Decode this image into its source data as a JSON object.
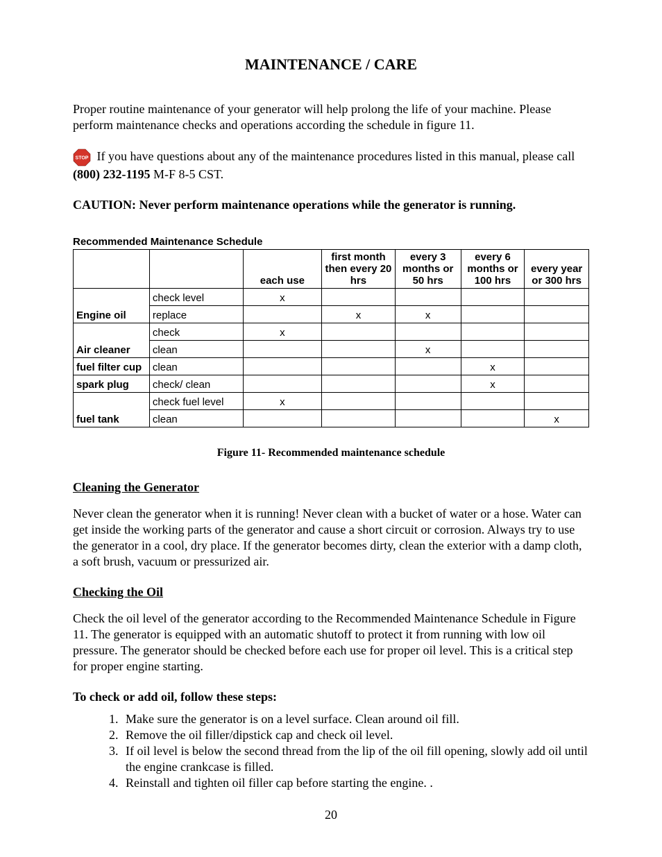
{
  "title": "MAINTENANCE / CARE",
  "intro": "Proper routine maintenance of your generator will help prolong the life of your machine.  Please perform maintenance checks and operations according the schedule in figure 11.",
  "stop_icon": {
    "label": "STOP",
    "fill": "#d4342a",
    "text_color": "#ffffff"
  },
  "stop_para_1": " If you have questions about any of the maintenance procedures listed in this manual, please call ",
  "stop_phone": "(800) 232-1195",
  "stop_para_2": " M-F 8-5 CST.",
  "caution": "CAUTION: Never perform maintenance operations while the generator is running.",
  "table_title": "Recommended Maintenance Schedule",
  "table": {
    "columns": [
      "",
      "",
      "each use",
      "first month then every 20 hrs",
      "every 3 months or 50 hrs",
      "every 6 months or 100 hrs",
      "every year or 300 hrs"
    ],
    "col_widths": [
      "110px",
      "140px",
      "118px",
      "106px",
      "92px",
      "88px",
      "92px"
    ],
    "header_bg": "#ffffff",
    "border_color": "#000000",
    "font_family": "Arial",
    "font_size": 15,
    "rows": [
      {
        "item": "Engine oil",
        "rowspan": 2,
        "action": "check level",
        "marks": [
          "x",
          "",
          "",
          "",
          ""
        ]
      },
      {
        "item": "",
        "action": "replace",
        "marks": [
          "",
          "x",
          "x",
          "",
          ""
        ]
      },
      {
        "item": "Air cleaner",
        "rowspan": 2,
        "action": "check",
        "marks": [
          "x",
          "",
          "",
          "",
          ""
        ]
      },
      {
        "item": "",
        "action": "clean",
        "marks": [
          "",
          "",
          "x",
          "",
          ""
        ]
      },
      {
        "item": "fuel filter cup",
        "rowspan": 1,
        "action": "clean",
        "marks": [
          "",
          "",
          "",
          "x",
          ""
        ]
      },
      {
        "item": "spark plug",
        "rowspan": 1,
        "action": "check/ clean",
        "marks": [
          "",
          "",
          "",
          "x",
          ""
        ]
      },
      {
        "item": "fuel tank",
        "rowspan": 2,
        "action": "check fuel level",
        "marks": [
          "x",
          "",
          "",
          "",
          ""
        ]
      },
      {
        "item": "",
        "action": "clean",
        "marks": [
          "",
          "",
          "",
          "",
          "x"
        ]
      }
    ]
  },
  "caption": "Figure 11- Recommended maintenance schedule",
  "section_cleaning": {
    "heading": "Cleaning the Generator",
    "body": "Never clean the generator when it is running! Never clean with a bucket of water or a hose.  Water can get inside the working parts of the generator and cause a short circuit or corrosion.  Always try to use the generator in a cool, dry place.  If the generator becomes dirty, clean the exterior with a damp cloth, a soft brush, vacuum or pressurized air."
  },
  "section_oil": {
    "heading": "Checking the Oil",
    "body": "Check the oil level of the generator according to the Recommended Maintenance Schedule in Figure 11.  The generator is equipped with an automatic shutoff to protect it from running with low oil pressure.  The generator should be checked before each use for proper oil level.  This is a critical step for proper engine starting.",
    "subhead": "To check or add oil, follow these steps:",
    "steps": [
      "Make sure the generator is on a level surface. Clean around oil fill.",
      "Remove the oil filler/dipstick cap and check oil level.",
      "If oil level is below the second thread from the lip of the oil fill opening, slowly add oil until the engine crankcase is filled.",
      "Reinstall and tighten oil filler cap before starting the engine. ."
    ]
  },
  "page_number": "20"
}
